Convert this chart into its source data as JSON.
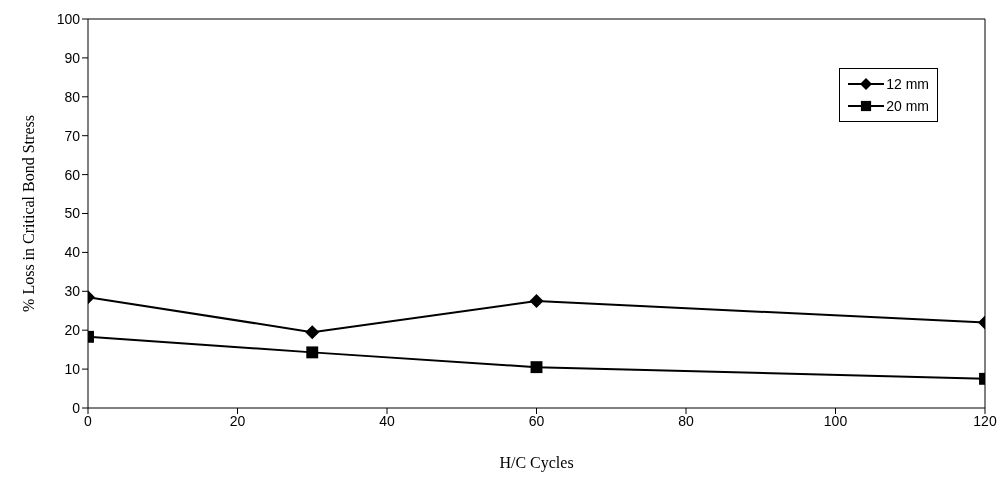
{
  "chart_data": {
    "type": "line",
    "xlabel": "H/C Cycles",
    "ylabel": "% Loss in Critical Bond Stress",
    "x": [
      0,
      30,
      60,
      120
    ],
    "series": [
      {
        "name": "12 mm",
        "color": "#000000",
        "values": [
          28.5,
          19.5,
          27.5,
          22
        ],
        "marker": "diamond"
      },
      {
        "name": "20 mm",
        "color": "#000000",
        "values": [
          18.3,
          14.3,
          10.5,
          7.5
        ],
        "marker": "square"
      }
    ],
    "xlim": [
      0,
      120
    ],
    "xticks": [
      0,
      20,
      40,
      60,
      80,
      100,
      120
    ],
    "ylim": [
      0,
      100
    ],
    "yticks": [
      0,
      10,
      20,
      30,
      40,
      50,
      60,
      70,
      80,
      90,
      100
    ],
    "grid": false,
    "legend": "top right",
    "line_style": "solid"
  }
}
